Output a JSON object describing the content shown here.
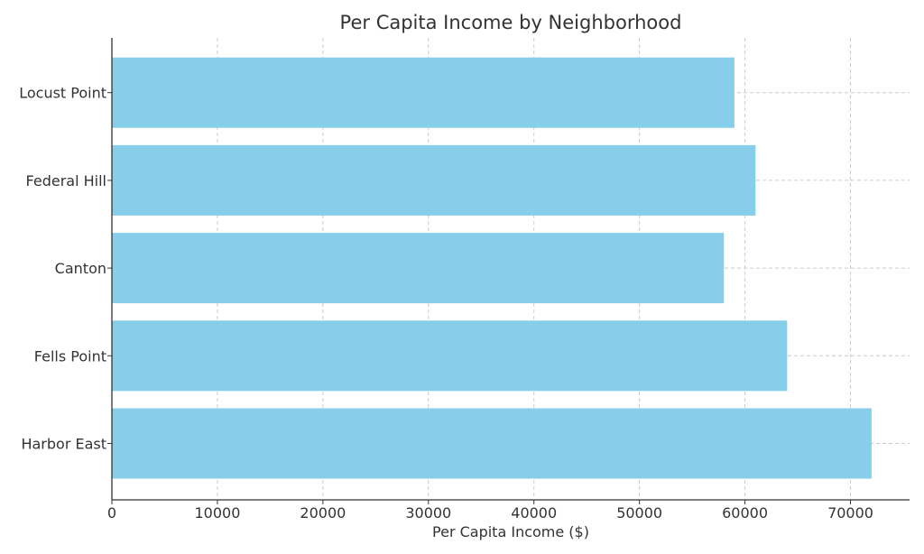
{
  "chart_data": {
    "type": "bar",
    "orientation": "horizontal",
    "title": "Per Capita Income by Neighborhood",
    "xlabel": "Per Capita Income ($)",
    "ylabel": "",
    "categories": [
      "Harbor East",
      "Fells Point",
      "Canton",
      "Federal Hill",
      "Locust Point"
    ],
    "values": [
      72000,
      64000,
      58000,
      61000,
      59000
    ],
    "xlim": [
      0,
      75600
    ],
    "xticks": [
      0,
      10000,
      20000,
      30000,
      40000,
      50000,
      60000,
      70000
    ],
    "bar_color": "#87CEEB",
    "grid": true,
    "legend": "none"
  }
}
